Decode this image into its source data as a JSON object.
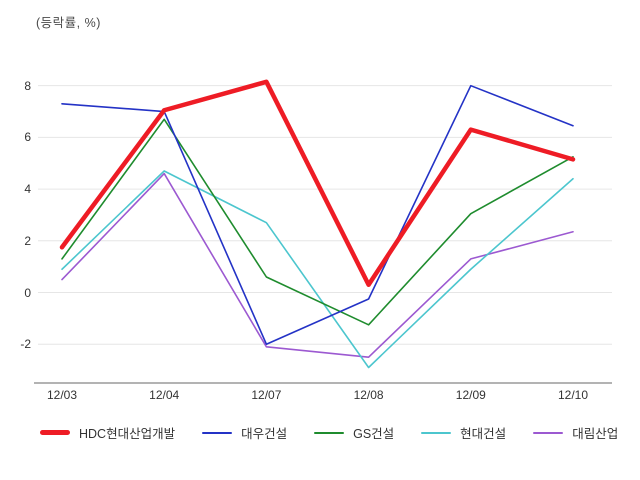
{
  "chart_data": {
    "type": "line",
    "title": "(등락률, %)",
    "categories": [
      "12/03",
      "12/04",
      "12/07",
      "12/08",
      "12/09",
      "12/10"
    ],
    "series": [
      {
        "name": "HDC현대산업개발",
        "color": "#ee1c25",
        "stroke_width": 4.5,
        "values": [
          1.75,
          7.05,
          8.15,
          0.3,
          6.3,
          5.15
        ]
      },
      {
        "name": "대우건설",
        "color": "#2433c6",
        "stroke_width": 1.6,
        "values": [
          7.3,
          7.0,
          -2.0,
          -0.25,
          8.0,
          6.45
        ]
      },
      {
        "name": "GS건설",
        "color": "#1f8c2e",
        "stroke_width": 1.6,
        "values": [
          1.3,
          6.7,
          0.6,
          -1.25,
          3.05,
          5.25
        ]
      },
      {
        "name": "현대건설",
        "color": "#4cc6ce",
        "stroke_width": 1.6,
        "values": [
          0.9,
          4.7,
          2.7,
          -2.9,
          0.9,
          4.4
        ]
      },
      {
        "name": "대림산업",
        "color": "#9c59d1",
        "stroke_width": 1.6,
        "values": [
          0.5,
          4.6,
          -2.1,
          -2.5,
          1.3,
          2.35
        ]
      }
    ],
    "yticks": [
      8,
      6,
      4,
      2,
      0,
      -2
    ],
    "ylim": [
      -3.5,
      8.8
    ],
    "grid": "horizontal",
    "grid_color": "#e6e6e6",
    "axis_color": "#9a9a9a",
    "legend_position": "bottom"
  }
}
